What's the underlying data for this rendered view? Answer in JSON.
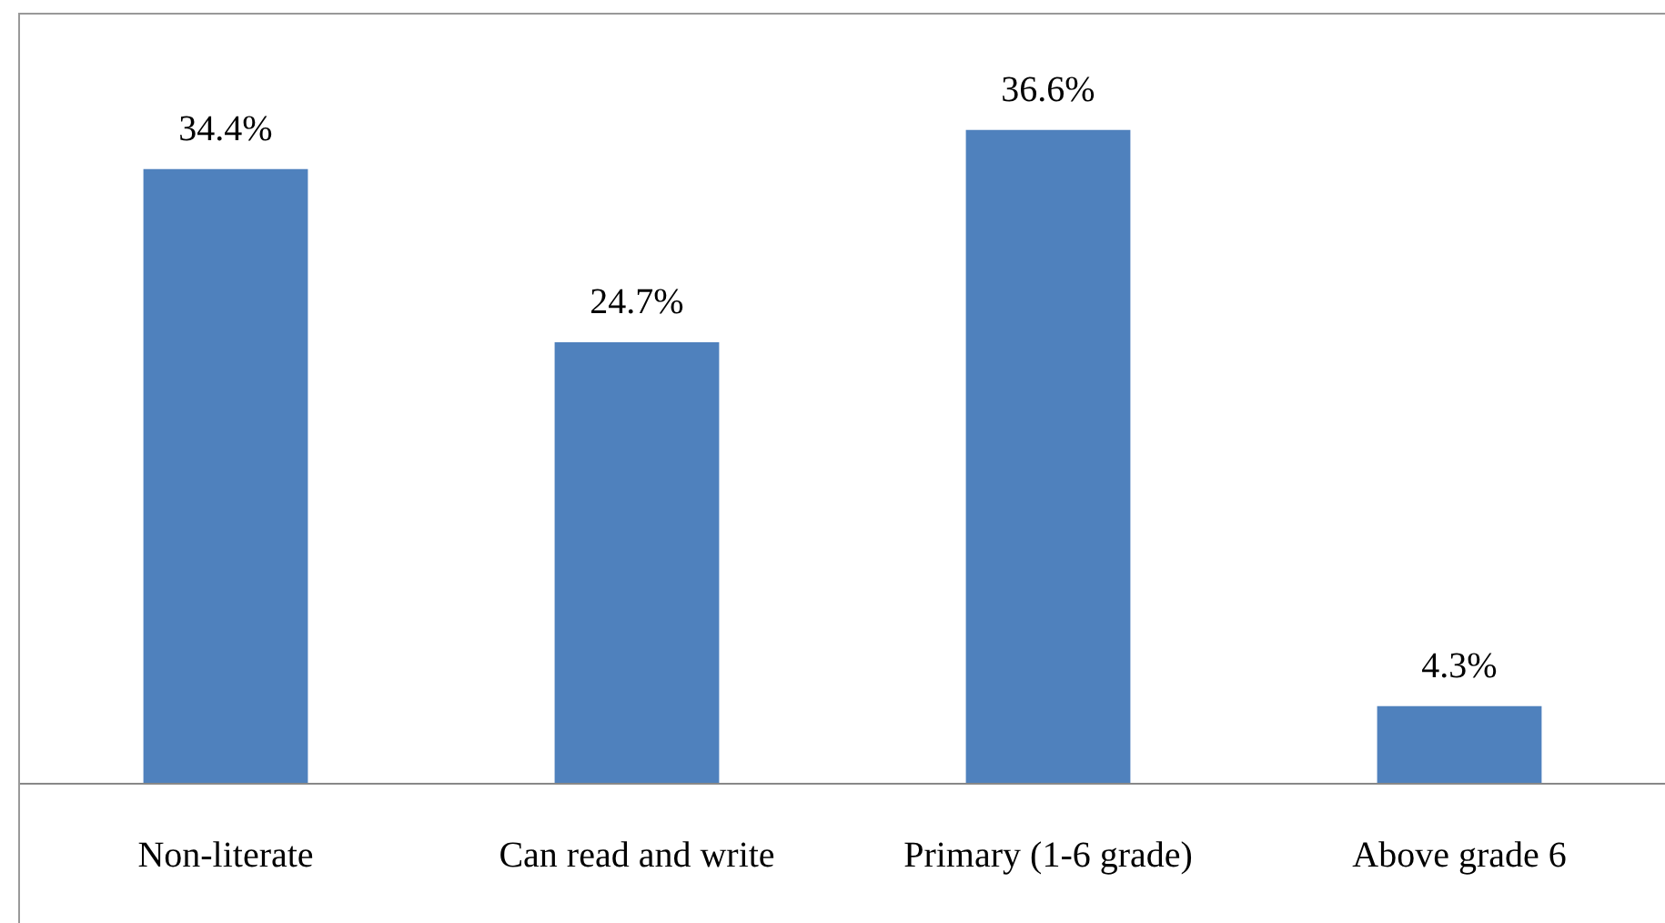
{
  "chart_data": {
    "type": "bar",
    "categories": [
      "Non-literate",
      "Can read and write",
      "Primary (1-6 grade)",
      "Above grade 6"
    ],
    "values": [
      34.4,
      24.7,
      36.6,
      4.3
    ],
    "value_labels": [
      "34.4%",
      "24.7%",
      "36.6%",
      "4.3%"
    ],
    "color": "#4f81bd"
  }
}
